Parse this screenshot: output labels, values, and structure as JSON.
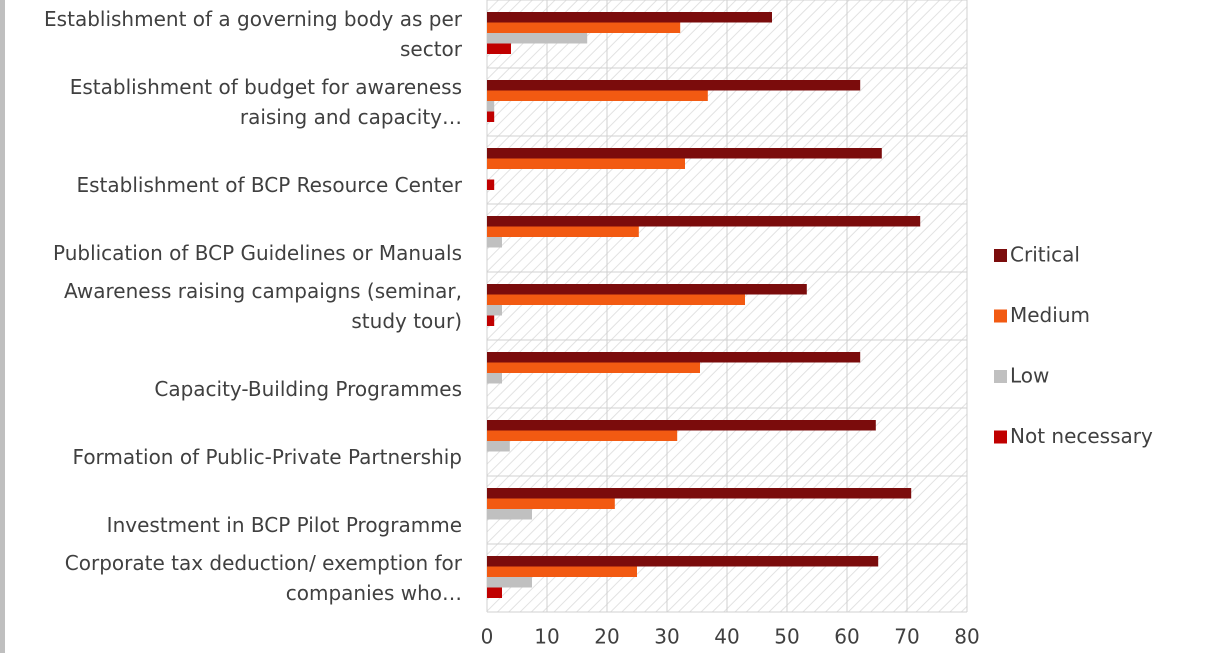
{
  "chart_data": {
    "type": "hbar",
    "categories": [
      "Establishment of a governing body as per sector",
      "Establishment of budget for awareness raising and capacity…",
      "Establishment of BCP Resource Center",
      "Publication of BCP Guidelines or Manuals",
      "Awareness raising campaigns (seminar, study tour)",
      "Capacity-Building Programmes",
      "Formation of Public-Private Partnership",
      "Investment in BCP Pilot Programme",
      "Corporate tax deduction/ exemption for companies who…"
    ],
    "series": [
      {
        "name": "Critical",
        "color": "#7b0c0c",
        "values": [
          47.5,
          62.2,
          65.8,
          72.2,
          53.3,
          62.2,
          64.8,
          70.7,
          65.2
        ]
      },
      {
        "name": "Medium",
        "color": "#f25a12",
        "values": [
          32.2,
          36.8,
          33,
          25.3,
          43,
          35.5,
          31.7,
          21.3,
          25
        ]
      },
      {
        "name": "Low",
        "color": "#c0c0c0",
        "values": [
          16.7,
          1.2,
          0,
          2.5,
          2.5,
          2.5,
          3.8,
          7.5,
          7.5
        ]
      },
      {
        "name": "Not necessary",
        "color": "#c00000",
        "values": [
          4,
          1.2,
          1.2,
          0,
          1.2,
          0,
          0,
          0,
          2.5
        ]
      }
    ],
    "xlim": [
      0,
      80
    ],
    "xticks": [
      0,
      10,
      20,
      30,
      40,
      50,
      60,
      70,
      80
    ],
    "grid": true,
    "legend": "right"
  }
}
